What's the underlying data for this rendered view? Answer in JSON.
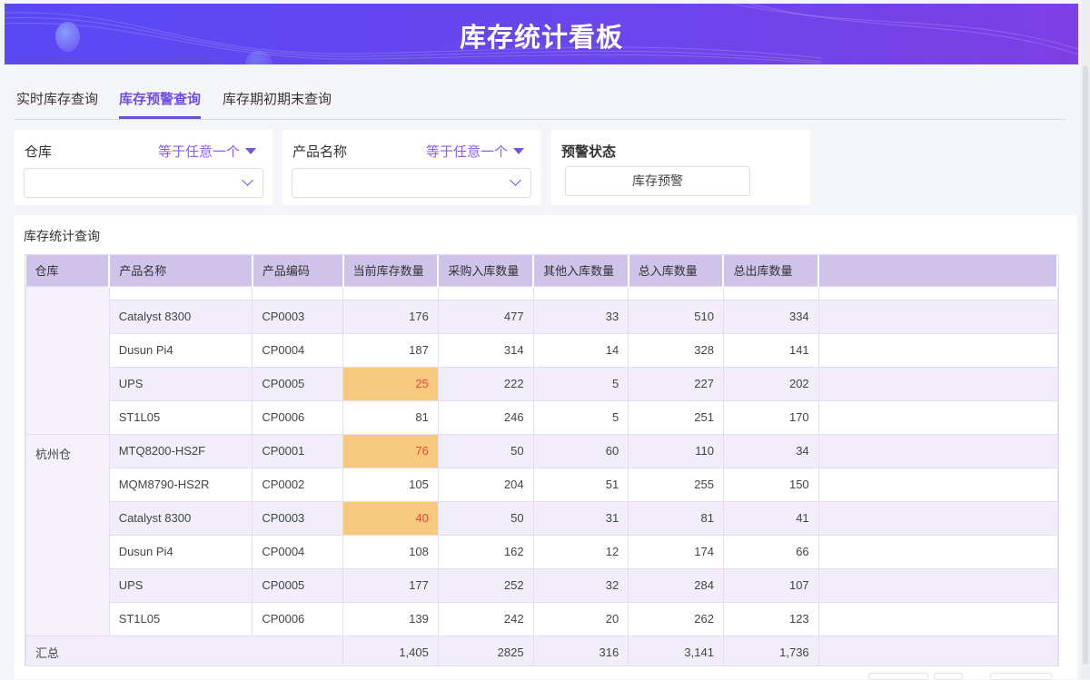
{
  "header": {
    "title": "库存统计看板"
  },
  "tabs": [
    {
      "label": "实时库存查询"
    },
    {
      "label": "库存预警查询",
      "active": true
    },
    {
      "label": "库存期初期末查询"
    }
  ],
  "filters": {
    "warehouse": {
      "label": "仓库",
      "operator": "等于任意一个",
      "value": ""
    },
    "product": {
      "label": "产品名称",
      "operator": "等于任意一个",
      "value": ""
    },
    "alert": {
      "label": "预警状态",
      "button": "库存预警"
    }
  },
  "table": {
    "title": "库存统计查询",
    "columns": [
      "仓库",
      "产品名称",
      "产品编码",
      "当前库存数量",
      "采购入库数量",
      "其他入库数量",
      "总入库数量",
      "总出库数量"
    ],
    "groups": [
      {
        "warehouse": "",
        "rows": [
          [
            "Catalyst 8300",
            "CP0003",
            "176",
            "477",
            "33",
            "510",
            "334",
            false
          ],
          [
            "Dusun Pi4",
            "CP0004",
            "187",
            "314",
            "14",
            "328",
            "141",
            false
          ],
          [
            "UPS",
            "CP0005",
            "25",
            "222",
            "5",
            "227",
            "202",
            true
          ],
          [
            "ST1L05",
            "CP0006",
            "81",
            "246",
            "5",
            "251",
            "170",
            false
          ]
        ]
      },
      {
        "warehouse": "杭州仓",
        "rows": [
          [
            "MTQ8200-HS2F",
            "CP0001",
            "76",
            "50",
            "60",
            "110",
            "34",
            true
          ],
          [
            "MQM8790-HS2R",
            "CP0002",
            "105",
            "204",
            "51",
            "255",
            "150",
            false
          ],
          [
            "Catalyst 8300",
            "CP0003",
            "40",
            "50",
            "31",
            "81",
            "41",
            true
          ],
          [
            "Dusun Pi4",
            "CP0004",
            "108",
            "162",
            "12",
            "174",
            "66",
            false
          ],
          [
            "UPS",
            "CP0005",
            "177",
            "252",
            "32",
            "284",
            "107",
            false
          ],
          [
            "ST1L05",
            "CP0006",
            "139",
            "242",
            "20",
            "262",
            "123",
            false
          ]
        ]
      }
    ],
    "summary": {
      "label": "汇总",
      "values": [
        "1,405",
        "2825",
        "316",
        "3,141",
        "1,736"
      ]
    }
  },
  "colors": {
    "accent": "#6d4fe0",
    "header_bg": "#cfc3ea",
    "warn_bg": "#f7c97e",
    "warn_text": "#e64a3b"
  }
}
